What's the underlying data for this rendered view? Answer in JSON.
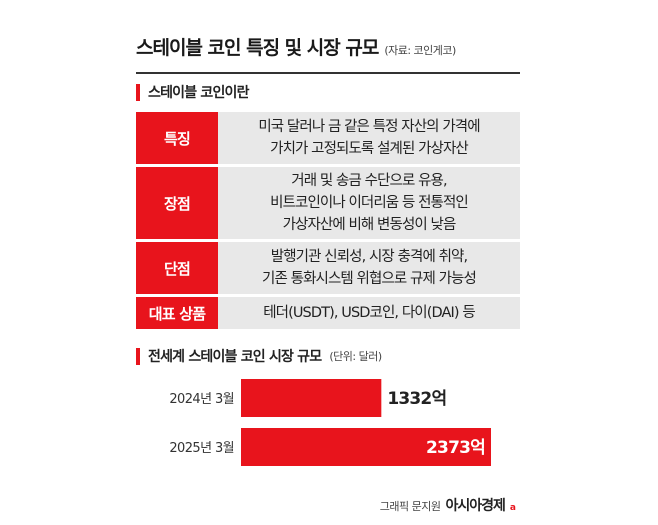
{
  "header": {
    "title": "스테이블 코인 특징 및 시장 규모",
    "source": "(자료: 코인게코)"
  },
  "section1": {
    "title": "스테이블 코인이란",
    "rows": [
      {
        "label": "특징",
        "lines": [
          "미국 달러나 금 같은 특정 자산의 가격에",
          "가치가 고정되도록 설계된 가상자산"
        ]
      },
      {
        "label": "장점",
        "lines": [
          "거래 및 송금 수단으로 유용,",
          "비트코인이나 이더리움 등 전통적인",
          "가상자산에 비해 변동성이 낮음"
        ]
      },
      {
        "label": "단점",
        "lines": [
          "발행기관 신뢰성, 시장 충격에 취약,",
          "기존 통화시스템 위협으로 규제 가능성"
        ]
      },
      {
        "label": "대표 상품",
        "lines": [
          "테더(USDT), USD코인, 다이(DAI) 등"
        ]
      }
    ]
  },
  "section2": {
    "title": "전세계 스테이블 코인 시장 규모",
    "unit": "(단위: 달러)"
  },
  "chart_data": {
    "type": "bar",
    "orientation": "horizontal",
    "title": "전세계 스테이블 코인 시장 규모",
    "unit": "(단위: 달러)",
    "categories": [
      "2024년 3월",
      "2025년 3월"
    ],
    "values": [
      1332,
      2373
    ],
    "value_labels": [
      "1332억",
      "2373억"
    ],
    "xlim": [
      0,
      2373
    ],
    "grid": false,
    "bar_color": "#e8141c"
  },
  "footer": {
    "credit": "그래픽 문지원",
    "brand": "아시아경제",
    "brand_mark": "a"
  },
  "colors": {
    "accent": "#e8141c",
    "row_bg": "#e8e8e8"
  }
}
